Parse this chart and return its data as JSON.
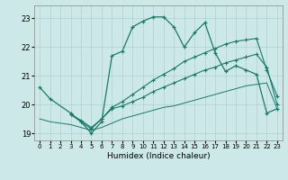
{
  "xlabel": "Humidex (Indice chaleur)",
  "bg_color": "#cce8e8",
  "line_color": "#1a7a6a",
  "xlim": [
    -0.5,
    23.5
  ],
  "ylim": [
    18.75,
    23.45
  ],
  "yticks": [
    19,
    20,
    21,
    22,
    23
  ],
  "xticks": [
    0,
    1,
    2,
    3,
    4,
    5,
    6,
    7,
    8,
    9,
    10,
    11,
    12,
    13,
    14,
    15,
    16,
    17,
    18,
    19,
    20,
    21,
    22,
    23
  ],
  "line1_x": [
    0,
    1,
    3,
    4,
    5,
    6,
    7,
    8,
    9,
    10,
    11,
    12,
    13,
    14,
    15,
    16,
    17,
    18,
    19,
    20,
    21,
    22,
    23
  ],
  "line1_y": [
    20.6,
    20.2,
    19.7,
    19.4,
    19.0,
    19.4,
    21.7,
    21.85,
    22.7,
    22.9,
    23.05,
    23.05,
    22.7,
    22.0,
    22.5,
    22.85,
    21.8,
    21.15,
    21.35,
    21.2,
    21.05,
    19.7,
    19.85
  ],
  "line2_x": [
    3,
    4,
    5,
    6,
    7,
    8,
    9,
    10,
    11,
    12,
    13,
    14,
    15,
    16,
    17,
    18,
    19,
    20,
    21,
    22,
    23
  ],
  "line2_y": [
    19.65,
    19.4,
    19.15,
    19.5,
    19.85,
    19.95,
    20.1,
    20.25,
    20.45,
    20.6,
    20.75,
    20.9,
    21.05,
    21.2,
    21.3,
    21.45,
    21.55,
    21.65,
    21.75,
    21.3,
    20.0
  ],
  "line3_x": [
    3,
    4,
    5,
    6,
    7,
    8,
    9,
    10,
    11,
    12,
    13,
    14,
    15,
    16,
    17,
    18,
    19,
    20,
    21,
    22,
    23
  ],
  "line3_y": [
    19.65,
    19.45,
    19.2,
    19.5,
    19.9,
    20.1,
    20.35,
    20.6,
    20.85,
    21.05,
    21.25,
    21.5,
    21.65,
    21.8,
    21.95,
    22.1,
    22.2,
    22.25,
    22.3,
    21.2,
    20.3
  ],
  "line4_x": [
    0,
    1,
    3,
    4,
    5,
    6,
    7,
    8,
    9,
    10,
    11,
    12,
    13,
    14,
    15,
    16,
    17,
    18,
    19,
    20,
    21,
    22,
    23
  ],
  "line4_y": [
    19.5,
    19.4,
    19.3,
    19.2,
    19.1,
    19.2,
    19.35,
    19.5,
    19.6,
    19.7,
    19.8,
    19.9,
    19.95,
    20.05,
    20.15,
    20.25,
    20.35,
    20.45,
    20.55,
    20.65,
    20.7,
    20.75,
    19.85
  ]
}
